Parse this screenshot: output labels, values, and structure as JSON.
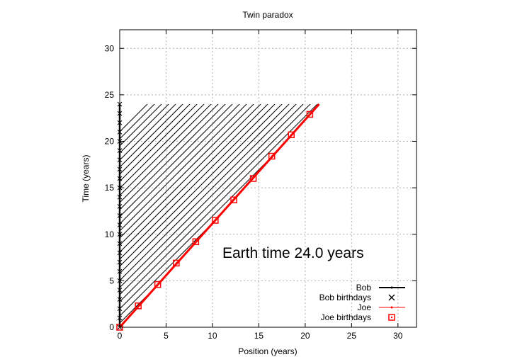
{
  "chart_data": {
    "type": "line",
    "title": "Twin paradox",
    "xlabel": "Position (years)",
    "ylabel": "Time (years)",
    "xlim": [
      0,
      32
    ],
    "ylim": [
      0,
      32
    ],
    "xticks": [
      0,
      5,
      10,
      15,
      20,
      25,
      30
    ],
    "yticks": [
      0,
      5,
      10,
      15,
      20,
      25,
      30
    ],
    "grid": true,
    "legend_position": "bottom-right",
    "annotation": "Earth time 24.0 years",
    "hatched_region": {
      "x_from": 0,
      "y_from": 0,
      "y_to": 24.0,
      "bounded_by": "Joe"
    },
    "series": [
      {
        "name": "Bob",
        "color": "#000000",
        "style": "line",
        "x": [
          0,
          0
        ],
        "y": [
          0,
          24.0
        ]
      },
      {
        "name": "Bob birthdays",
        "color": "#000000",
        "style": "x-markers",
        "x": [
          0,
          0,
          0,
          0,
          0,
          0,
          0,
          0,
          0,
          0,
          0,
          0,
          0,
          0,
          0,
          0,
          0,
          0,
          0,
          0,
          0,
          0,
          0,
          0,
          0
        ],
        "y": [
          0,
          1,
          2,
          3,
          4,
          5,
          6,
          7,
          8,
          9,
          10,
          11,
          12,
          13,
          14,
          15,
          16,
          17,
          18,
          19,
          20,
          21,
          22,
          23,
          24
        ]
      },
      {
        "name": "Joe",
        "color": "#ff0000",
        "style": "line",
        "x": [
          0,
          21.5
        ],
        "y": [
          0,
          24.0
        ]
      },
      {
        "name": "Joe birthdays",
        "color": "#ff0000",
        "style": "square-markers",
        "x": [
          0,
          2.0,
          4.1,
          6.1,
          8.2,
          10.3,
          12.3,
          14.4,
          16.4,
          18.5,
          20.5
        ],
        "y": [
          0,
          2.3,
          4.6,
          6.9,
          9.2,
          11.5,
          13.7,
          16.0,
          18.4,
          20.7,
          22.9
        ]
      }
    ]
  }
}
